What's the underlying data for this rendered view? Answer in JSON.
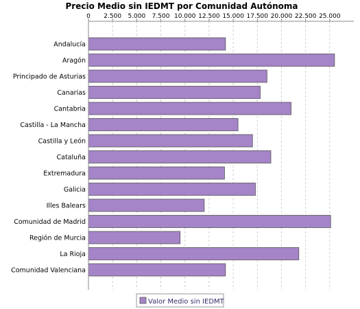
{
  "chart_data": {
    "type": "bar",
    "orientation": "horizontal",
    "title": "Precio Medio sin IEDMT por Comunidad Autónoma",
    "categories": [
      "Andalucía",
      "Aragón",
      "Principado de Asturias",
      "Canarias",
      "Cantabria",
      "Castilla - La Mancha",
      "Castilla y León",
      "Cataluña",
      "Extremadura",
      "Galicia",
      "Illes Balears",
      "Comunidad de Madrid",
      "Región de Murcia",
      "La Rioja",
      "Comunidad Valenciana"
    ],
    "series": [
      {
        "name": "Valor Medio sin IEDMT",
        "values": [
          14200,
          25500,
          18500,
          17800,
          21000,
          15500,
          17000,
          18900,
          14100,
          17300,
          12000,
          25100,
          9500,
          21800,
          14200
        ]
      }
    ],
    "xlim": [
      0,
      27500
    ],
    "ticks": [
      0,
      2500,
      5000,
      7500,
      10000,
      12500,
      15000,
      17500,
      20000,
      22500,
      25000
    ],
    "tick_labels": [
      "0",
      "2.500",
      "5.000",
      "7.500",
      "10.000",
      "12.500",
      "15.000",
      "17.500",
      "20.000",
      "22.500",
      "25.000"
    ],
    "axis_position": "top",
    "grid": true,
    "legend_position": "bottom-center",
    "bar_color": "#a584c8",
    "bar_edge_color": "#555555",
    "grid_color": "#cccccc"
  }
}
